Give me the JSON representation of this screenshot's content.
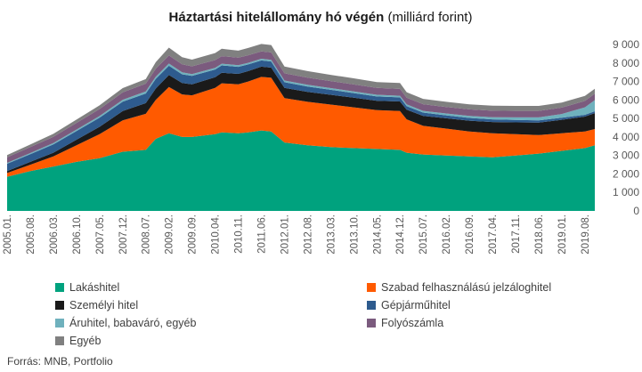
{
  "chart_data": {
    "type": "area",
    "stacked": true,
    "title_bold": "Háztartási hitelállomány hó végén",
    "title_rest": " (milliárd forint)",
    "source": "Forrás: MNB, Portfolio",
    "ylim": [
      0,
      9000
    ],
    "yticks": [
      "0",
      "1 000",
      "2 000",
      "3 000",
      "4 000",
      "5 000",
      "6 000",
      "7 000",
      "8 000",
      "9 000"
    ],
    "ytick_values": [
      0,
      1000,
      2000,
      3000,
      4000,
      5000,
      6000,
      7000,
      8000,
      9000
    ],
    "x_start": "2005-01",
    "x_end": "2019-11",
    "xticks": [
      "2005.01.",
      "2005.08.",
      "2006.03.",
      "2006.10.",
      "2007.05.",
      "2007.12.",
      "2008.07.",
      "2009.02.",
      "2009.09.",
      "2010.04.",
      "2010.11.",
      "2011.06.",
      "2012.01.",
      "2012.08.",
      "2013.03.",
      "2013.10.",
      "2014.05.",
      "2014.12.",
      "2015.07.",
      "2016.02.",
      "2016.09.",
      "2017.04.",
      "2017.11.",
      "2018.06.",
      "2019.01.",
      "2019.08."
    ],
    "x_points": [
      "2005-01",
      "2005-08",
      "2006-03",
      "2006-10",
      "2007-05",
      "2007-12",
      "2008-07",
      "2008-10",
      "2009-02",
      "2009-06",
      "2009-09",
      "2010-04",
      "2010-06",
      "2010-11",
      "2011-02",
      "2011-06",
      "2011-09",
      "2012-01",
      "2012-08",
      "2013-03",
      "2013-10",
      "2014-05",
      "2014-12",
      "2015-02",
      "2015-07",
      "2016-02",
      "2016-09",
      "2017-04",
      "2017-11",
      "2018-06",
      "2019-01",
      "2019-08",
      "2019-11"
    ],
    "series": [
      {
        "name": "Lakáshitel",
        "color": "#00a27e",
        "values": [
          1850,
          2150,
          2400,
          2650,
          2850,
          3200,
          3300,
          3900,
          4200,
          4000,
          4000,
          4150,
          4250,
          4200,
          4250,
          4350,
          4300,
          3700,
          3550,
          3450,
          3400,
          3350,
          3300,
          3150,
          3050,
          3000,
          2950,
          2900,
          3000,
          3100,
          3250,
          3400,
          3550
        ]
      },
      {
        "name": "Szabad felhasználású jelzáloghitel",
        "color": "#ff5a00",
        "values": [
          200,
          350,
          550,
          900,
          1300,
          1700,
          1950,
          2100,
          2500,
          2300,
          2250,
          2500,
          2650,
          2650,
          2750,
          2900,
          2900,
          2400,
          2350,
          2300,
          2200,
          2100,
          2100,
          1800,
          1550,
          1450,
          1350,
          1300,
          1150,
          1000,
          950,
          900,
          880
        ]
      },
      {
        "name": "Személyi hitel",
        "color": "#1a1a1a",
        "values": [
          100,
          150,
          200,
          300,
          400,
          500,
          580,
          620,
          650,
          620,
          600,
          580,
          570,
          560,
          560,
          550,
          550,
          550,
          540,
          530,
          520,
          510,
          520,
          520,
          540,
          560,
          580,
          610,
          640,
          680,
          730,
          800,
          860
        ]
      },
      {
        "name": "Gépjárműhitel",
        "color": "#2e5b8e",
        "values": [
          400,
          420,
          450,
          470,
          490,
          510,
          520,
          520,
          500,
          470,
          450,
          420,
          400,
          380,
          360,
          340,
          330,
          310,
          290,
          270,
          250,
          230,
          220,
          200,
          180,
          160,
          150,
          140,
          130,
          120,
          110,
          100,
          100
        ]
      },
      {
        "name": "Áruhitel, babaváró, egyéb",
        "color": "#6fb1bd",
        "values": [
          50,
          60,
          70,
          80,
          90,
          100,
          110,
          120,
          120,
          110,
          100,
          90,
          90,
          90,
          90,
          90,
          90,
          90,
          90,
          90,
          90,
          90,
          90,
          90,
          90,
          100,
          110,
          120,
          140,
          160,
          200,
          400,
          600
        ]
      },
      {
        "name": "Folyószámla",
        "color": "#7b5b7e",
        "values": [
          300,
          320,
          340,
          360,
          380,
          400,
          420,
          430,
          440,
          430,
          420,
          420,
          410,
          410,
          410,
          400,
          400,
          390,
          390,
          380,
          380,
          370,
          370,
          360,
          360,
          350,
          350,
          350,
          350,
          350,
          350,
          350,
          350
        ]
      },
      {
        "name": "Egyéb",
        "color": "#808080",
        "values": [
          120,
          140,
          160,
          180,
          200,
          230,
          250,
          350,
          420,
          380,
          360,
          380,
          400,
          380,
          390,
          400,
          400,
          370,
          350,
          340,
          330,
          320,
          320,
          300,
          290,
          280,
          270,
          270,
          270,
          270,
          270,
          270,
          270
        ]
      }
    ]
  }
}
